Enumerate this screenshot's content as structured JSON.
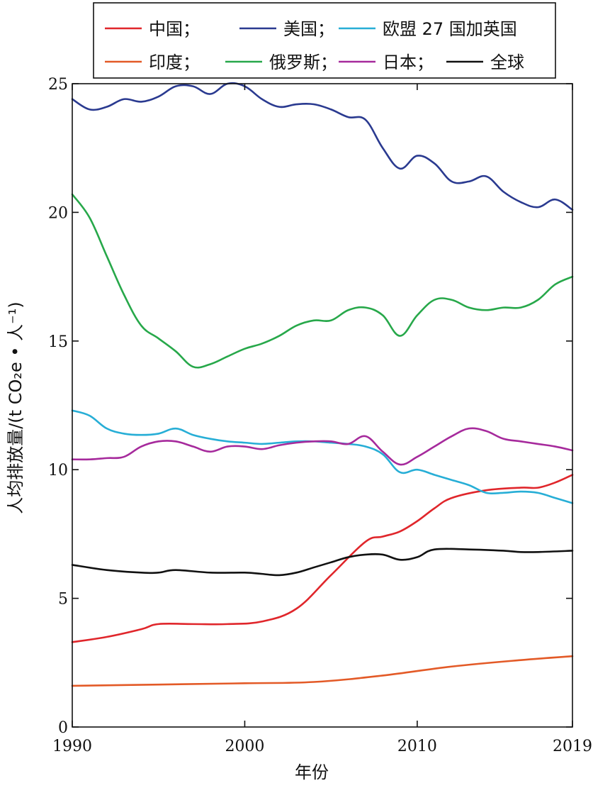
{
  "chart_data": {
    "type": "line",
    "xlabel": "年份",
    "ylabel": "人均排放量/(t CO₂e • 人⁻¹)",
    "xlim": [
      1990,
      2019
    ],
    "ylim": [
      0,
      25
    ],
    "xticks": [
      1990,
      2000,
      2010,
      2019
    ],
    "yticks": [
      0,
      5,
      10,
      15,
      20,
      25
    ],
    "grid": false,
    "legend_position": "top-center",
    "series": [
      {
        "name": "中国；",
        "color": "#e0262b",
        "x": [
          1990,
          1992,
          1994,
          1995,
          1997,
          1999,
          2001,
          2003,
          2005,
          2007,
          2008,
          2009,
          2010,
          2011,
          2012,
          2014,
          2016,
          2017,
          2018,
          2019
        ],
        "y": [
          3.3,
          3.5,
          3.8,
          4.0,
          4.0,
          4.0,
          4.1,
          4.6,
          5.9,
          7.2,
          7.4,
          7.6,
          8.0,
          8.5,
          8.9,
          9.2,
          9.3,
          9.3,
          9.5,
          9.8
        ]
      },
      {
        "name": "美国；",
        "color": "#2a3a90",
        "x": [
          1990,
          1991,
          1992,
          1993,
          1994,
          1995,
          1996,
          1997,
          1998,
          1999,
          2000,
          2001,
          2002,
          2003,
          2004,
          2005,
          2006,
          2007,
          2008,
          2009,
          2010,
          2011,
          2012,
          2013,
          2014,
          2015,
          2016,
          2017,
          2018,
          2019
        ],
        "y": [
          24.4,
          24.0,
          24.1,
          24.4,
          24.3,
          24.5,
          24.9,
          24.9,
          24.6,
          25.0,
          24.9,
          24.4,
          24.1,
          24.2,
          24.2,
          24.0,
          23.7,
          23.6,
          22.5,
          21.7,
          22.2,
          21.9,
          21.2,
          21.2,
          21.4,
          20.8,
          20.4,
          20.2,
          20.5,
          20.1
        ]
      },
      {
        "name": "欧盟 27 国加英国",
        "color": "#27aed6",
        "x": [
          1990,
          1991,
          1992,
          1993,
          1994,
          1995,
          1996,
          1997,
          1998,
          1999,
          2000,
          2001,
          2002,
          2003,
          2004,
          2005,
          2006,
          2007,
          2008,
          2009,
          2010,
          2011,
          2012,
          2013,
          2014,
          2015,
          2016,
          2017,
          2018,
          2019
        ],
        "y": [
          12.3,
          12.1,
          11.6,
          11.4,
          11.35,
          11.4,
          11.6,
          11.35,
          11.2,
          11.1,
          11.05,
          11.0,
          11.05,
          11.1,
          11.1,
          11.05,
          11.0,
          10.9,
          10.6,
          9.9,
          10.0,
          9.8,
          9.6,
          9.4,
          9.1,
          9.1,
          9.15,
          9.1,
          8.9,
          8.7
        ]
      },
      {
        "name": "印度；",
        "color": "#e35a27",
        "x": [
          1990,
          1995,
          2000,
          2004,
          2008,
          2012,
          2016,
          2019
        ],
        "y": [
          1.6,
          1.65,
          1.7,
          1.75,
          2.0,
          2.35,
          2.6,
          2.75
        ]
      },
      {
        "name": "俄罗斯；",
        "color": "#27a84a",
        "x": [
          1990,
          1991,
          1992,
          1993,
          1994,
          1995,
          1996,
          1997,
          1998,
          1999,
          2000,
          2001,
          2002,
          2003,
          2004,
          2005,
          2006,
          2007,
          2008,
          2009,
          2010,
          2011,
          2012,
          2013,
          2014,
          2015,
          2016,
          2017,
          2018,
          2019
        ],
        "y": [
          20.7,
          19.8,
          18.3,
          16.8,
          15.6,
          15.1,
          14.6,
          14.0,
          14.1,
          14.4,
          14.7,
          14.9,
          15.2,
          15.6,
          15.8,
          15.8,
          16.2,
          16.3,
          16.0,
          15.2,
          16.0,
          16.6,
          16.6,
          16.3,
          16.2,
          16.3,
          16.3,
          16.6,
          17.2,
          17.5
        ]
      },
      {
        "name": "日本；",
        "color": "#a62a9c",
        "x": [
          1990,
          1991,
          1992,
          1993,
          1994,
          1995,
          1996,
          1997,
          1998,
          1999,
          2000,
          2001,
          2002,
          2003,
          2004,
          2005,
          2006,
          2007,
          2008,
          2009,
          2010,
          2011,
          2012,
          2013,
          2014,
          2015,
          2016,
          2017,
          2018,
          2019
        ],
        "y": [
          10.4,
          10.4,
          10.45,
          10.5,
          10.9,
          11.1,
          11.1,
          10.9,
          10.7,
          10.9,
          10.9,
          10.8,
          10.95,
          11.05,
          11.1,
          11.1,
          11.0,
          11.3,
          10.7,
          10.2,
          10.5,
          10.9,
          11.3,
          11.6,
          11.5,
          11.2,
          11.1,
          11.0,
          10.9,
          10.75
        ]
      },
      {
        "name": "全球",
        "color": "#111111",
        "x": [
          1990,
          1992,
          1994,
          1995,
          1996,
          1998,
          2000,
          2001,
          2002,
          2003,
          2004,
          2005,
          2006,
          2007,
          2008,
          2009,
          2010,
          2011,
          2013,
          2015,
          2016,
          2017,
          2019
        ],
        "y": [
          6.3,
          6.1,
          6.0,
          6.0,
          6.1,
          6.0,
          6.0,
          5.95,
          5.9,
          6.0,
          6.2,
          6.4,
          6.6,
          6.7,
          6.7,
          6.5,
          6.6,
          6.9,
          6.9,
          6.85,
          6.8,
          6.8,
          6.85
        ]
      }
    ]
  }
}
